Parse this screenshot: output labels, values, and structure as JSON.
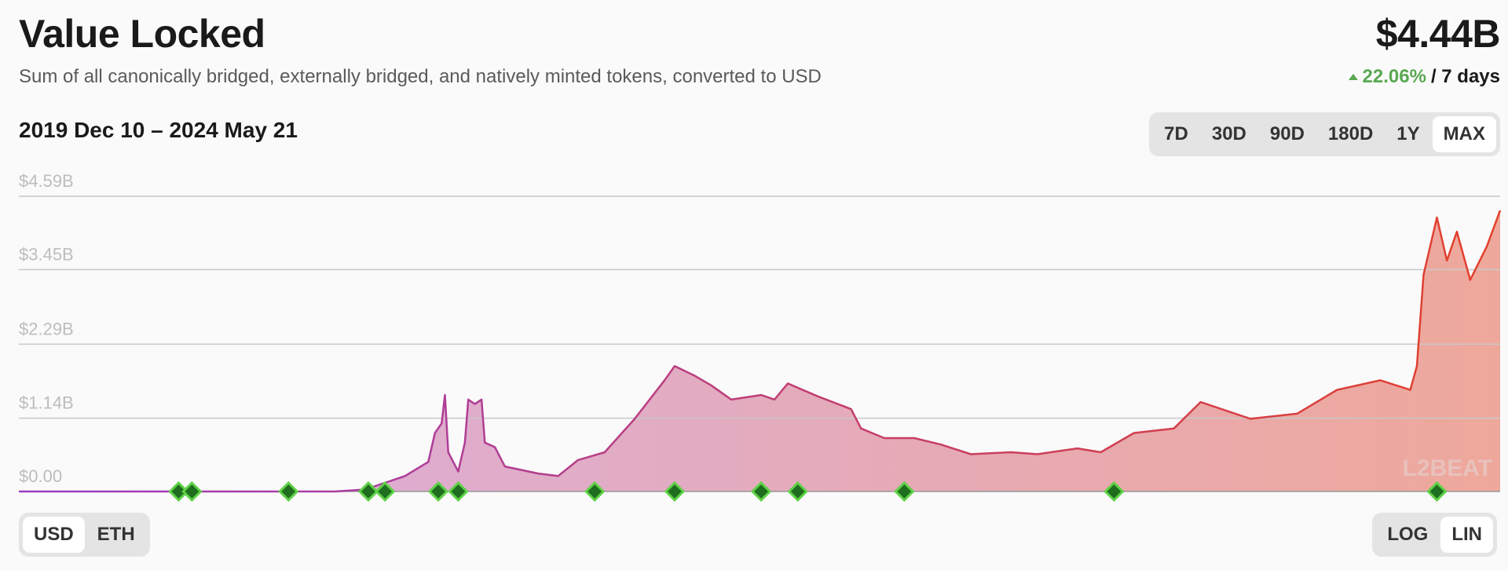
{
  "chart_data": {
    "type": "area",
    "title": "Value Locked",
    "subtitle": "Sum of all canonically bridged, externally bridged, and natively minted tokens, converted to USD",
    "total": "$4.44B",
    "change": "22.06%",
    "change_period": "/ 7 days",
    "date_range": "2019 Dec 10 – 2024 May 21",
    "x": [
      2019.94,
      2020.89,
      2020.98,
      2021.1,
      2021.17,
      2021.19,
      2021.21,
      2021.22,
      2021.23,
      2021.26,
      2021.28,
      2021.29,
      2021.31,
      2021.33,
      2021.34,
      2021.37,
      2021.4,
      2021.5,
      2021.56,
      2021.62,
      2021.7,
      2021.79,
      2021.88,
      2021.91,
      2021.97,
      2022.02,
      2022.08,
      2022.17,
      2022.21,
      2022.25,
      2022.34,
      2022.44,
      2022.47,
      2022.54,
      2022.63,
      2022.71,
      2022.8,
      2022.92,
      2023.0,
      2023.12,
      2023.19,
      2023.29,
      2023.41,
      2023.49,
      2023.64,
      2023.78,
      2023.9,
      2024.03,
      2024.12,
      2024.14,
      2024.16,
      2024.2,
      2024.23,
      2024.26,
      2024.3,
      2024.35,
      2024.39
    ],
    "values": [
      0,
      0,
      0.03,
      0.24,
      0.46,
      0.91,
      1.06,
      1.5,
      0.61,
      0.31,
      0.76,
      1.43,
      1.36,
      1.43,
      0.76,
      0.69,
      0.39,
      0.28,
      0.24,
      0.49,
      0.61,
      1.13,
      1.73,
      1.95,
      1.8,
      1.65,
      1.43,
      1.5,
      1.43,
      1.68,
      1.48,
      1.28,
      0.98,
      0.83,
      0.83,
      0.73,
      0.58,
      0.61,
      0.58,
      0.67,
      0.61,
      0.91,
      0.98,
      1.39,
      1.13,
      1.21,
      1.58,
      1.73,
      1.58,
      1.95,
      3.37,
      4.26,
      3.59,
      4.04,
      3.29,
      3.81,
      4.37
    ],
    "milestones": [
      2020.42,
      2020.46,
      2020.75,
      2020.99,
      2021.04,
      2021.2,
      2021.26,
      2021.67,
      2021.91,
      2022.17,
      2022.28,
      2022.6,
      2023.23,
      2024.2
    ],
    "xlim": [
      2019.94,
      2024.39
    ],
    "ylim": [
      0,
      4.59
    ],
    "yticks": [
      {
        "value": 0,
        "label": "$0.00"
      },
      {
        "value": 1.14,
        "label": "$1.14B"
      },
      {
        "value": 2.29,
        "label": "$2.29B"
      },
      {
        "value": 3.45,
        "label": "$3.45B"
      },
      {
        "value": 4.59,
        "label": "$4.59B"
      }
    ],
    "grid": true,
    "log_scale": false,
    "line_colors": [
      "#9a3cc2",
      "#e3402a"
    ],
    "fill_colors": [
      "#d9aee0",
      "#eea89b"
    ],
    "milestone_color": "#1f6e1f",
    "milestone_border": "#5fd147",
    "watermark": "L2BEAT"
  },
  "range_buttons": {
    "options": [
      "7D",
      "30D",
      "90D",
      "180D",
      "1Y",
      "MAX"
    ],
    "selected": "MAX"
  },
  "unit_buttons": {
    "options": [
      "USD",
      "ETH"
    ],
    "selected": "USD"
  },
  "scale_buttons": {
    "options": [
      "LOG",
      "LIN"
    ],
    "selected": "LIN"
  }
}
